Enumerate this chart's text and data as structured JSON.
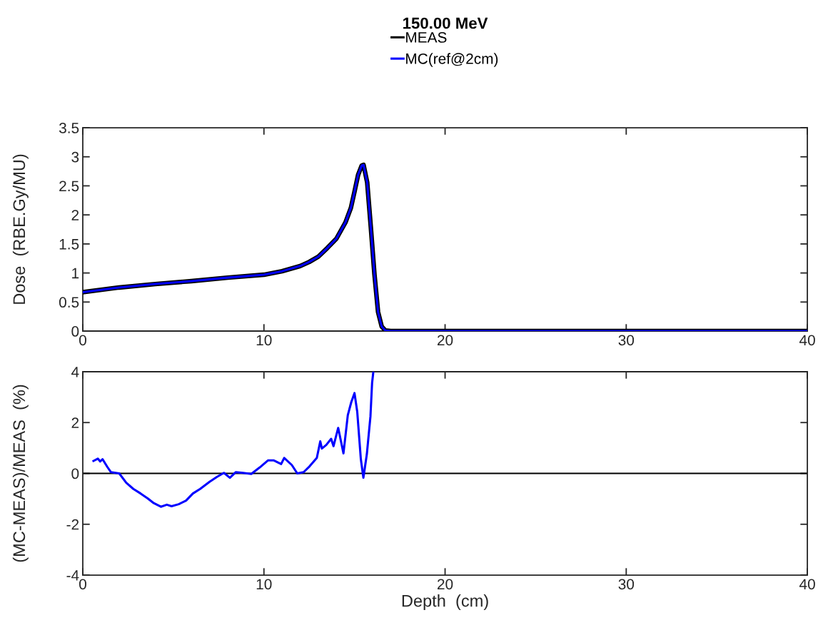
{
  "chart_data": [
    {
      "type": "line",
      "title": "150.00 MeV",
      "ylabel": "Dose  (RBE.Gy/MU)",
      "x": [
        0,
        2,
        4,
        6,
        8,
        10,
        11,
        12,
        12.5,
        13,
        13.5,
        14,
        14.5,
        14.8,
        15,
        15.2,
        15.4,
        15.5,
        15.7,
        15.9,
        16.1,
        16.3,
        16.5,
        16.7,
        17,
        40
      ],
      "series": [
        {
          "name": "MEAS",
          "color": "#000000",
          "values": [
            0.67,
            0.75,
            0.81,
            0.86,
            0.92,
            0.97,
            1.03,
            1.12,
            1.19,
            1.28,
            1.43,
            1.59,
            1.87,
            2.12,
            2.4,
            2.69,
            2.85,
            2.86,
            2.56,
            1.79,
            0.98,
            0.33,
            0.08,
            0.01,
            0,
            0
          ]
        },
        {
          "name": "MC(ref@2cm)",
          "color": "#0000ff",
          "values": [
            0.67,
            0.75,
            0.81,
            0.86,
            0.92,
            0.97,
            1.03,
            1.12,
            1.19,
            1.28,
            1.43,
            1.59,
            1.87,
            2.12,
            2.4,
            2.69,
            2.85,
            2.86,
            2.56,
            1.79,
            0.98,
            0.33,
            0.08,
            0.01,
            0,
            0
          ]
        }
      ],
      "xlim": [
        0,
        40
      ],
      "xticks": [
        0,
        10,
        20,
        30,
        40
      ],
      "ylim": [
        0,
        3.5
      ],
      "yticks": [
        0,
        0.5,
        1,
        1.5,
        2,
        2.5,
        3,
        3.5
      ],
      "legend": "top",
      "grid": false
    },
    {
      "type": "line",
      "xlabel": "Depth  (cm)",
      "ylabel": "(MC-MEAS)/MEAS  (%)",
      "x": [
        0.59,
        0.83,
        0.96,
        1.09,
        1.35,
        1.55,
        2.01,
        2.4,
        2.79,
        3.19,
        3.58,
        3.92,
        4.31,
        4.64,
        4.9,
        5.3,
        5.7,
        6.08,
        6.48,
        7.0,
        7.4,
        7.79,
        8.12,
        8.45,
        8.84,
        9.3,
        9.76,
        10.22,
        10.55,
        10.95,
        11.12,
        11.54,
        11.84,
        12.19,
        12.52,
        12.92,
        13.11,
        13.2,
        13.44,
        13.71,
        13.84,
        14.1,
        14.39,
        14.63,
        14.82,
        15.0,
        15.15,
        15.35,
        15.49,
        15.68,
        15.88,
        15.97,
        16.04
      ],
      "series": [
        {
          "color": "#0000ff",
          "values": [
            0.49,
            0.58,
            0.47,
            0.56,
            0.26,
            0.05,
            0,
            -0.37,
            -0.61,
            -0.79,
            -0.98,
            -1.17,
            -1.31,
            -1.23,
            -1.29,
            -1.21,
            -1.07,
            -0.79,
            -0.61,
            -0.33,
            -0.14,
            0.02,
            -0.17,
            0.05,
            0.02,
            -0.02,
            0.23,
            0.51,
            0.51,
            0.37,
            0.61,
            0.33,
            0,
            0.05,
            0.28,
            0.61,
            1.26,
            0.98,
            1.12,
            1.36,
            1.07,
            1.79,
            0.79,
            2.29,
            2.8,
            3.16,
            2.43,
            0.56,
            -0.17,
            0.75,
            2.24,
            3.55,
            4.0
          ]
        }
      ],
      "xlim": [
        0,
        40
      ],
      "xticks": [
        0,
        10,
        20,
        30,
        40
      ],
      "ylim": [
        -4,
        4
      ],
      "yticks": [
        -4,
        -2,
        0,
        2,
        4
      ],
      "ref_lines": [
        {
          "axis": "y",
          "value": 0,
          "color": "#000000"
        }
      ],
      "grid": false
    }
  ]
}
